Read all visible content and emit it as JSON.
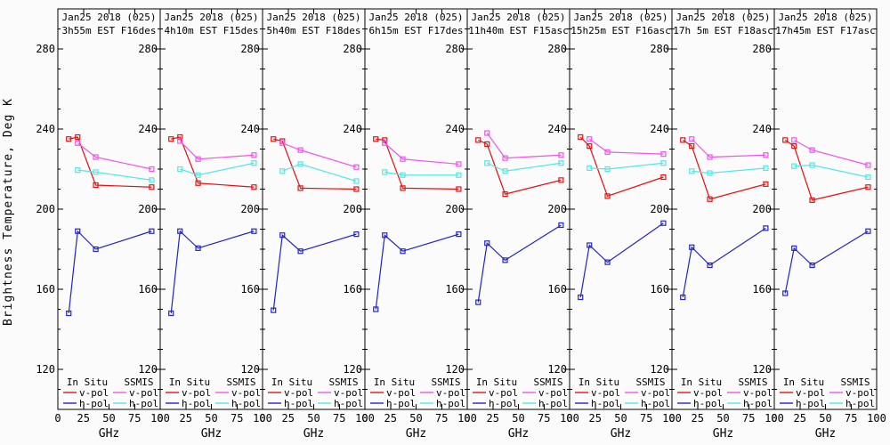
{
  "figure": {
    "background": "#fbfbfb"
  },
  "colors": {
    "insitu_v": "#e31212",
    "insitu_h": "#2424c4",
    "ssmis_v": "#ee55ee",
    "ssmis_h": "#55e6e6",
    "axis": "#000000"
  },
  "legend": {
    "col1_header": "In Situ",
    "col2_header": "SSMIS",
    "row1_label": "v-pol",
    "row2_label": "h-pol"
  },
  "chart_data": {
    "type": "line",
    "title": "",
    "xlabel": "GHz",
    "ylabel": "Brightness Temperature, Deg K",
    "xlim": [
      0,
      100
    ],
    "ylim": [
      100,
      300
    ],
    "xticks": [
      0,
      25,
      50,
      75,
      100
    ],
    "yticks": [
      120,
      160,
      200,
      240,
      280
    ],
    "grid": false,
    "marker": "open-square",
    "insitu_frequencies_ghz": [
      10.65,
      19.35,
      37,
      91.655
    ],
    "ssmis_frequencies_ghz": [
      19.35,
      37,
      91.655
    ],
    "panels": [
      {
        "title_line1": "Jan25 2018 (025)",
        "title_line2": "3h55m EST F16des",
        "series": {
          "insitu_v": [
            235,
            236,
            212,
            211
          ],
          "insitu_h": [
            148,
            189,
            180,
            189
          ],
          "ssmis_v": [
            233,
            226,
            220
          ],
          "ssmis_h": [
            219.5,
            218.5,
            214.5
          ]
        }
      },
      {
        "title_line1": "Jan25 2018 (025)",
        "title_line2": "4h10m EST F15des",
        "series": {
          "insitu_v": [
            235,
            236,
            213,
            211
          ],
          "insitu_h": [
            148,
            189,
            180.5,
            189
          ],
          "ssmis_v": [
            234,
            225,
            227
          ],
          "ssmis_h": [
            220,
            217,
            223
          ]
        }
      },
      {
        "title_line1": "Jan25 2018 (025)",
        "title_line2": "5h40m EST F18des",
        "series": {
          "insitu_v": [
            235,
            234,
            210.5,
            210
          ],
          "insitu_h": [
            149.5,
            187,
            179,
            187.5
          ],
          "ssmis_v": [
            233,
            229.5,
            221
          ],
          "ssmis_h": [
            219,
            222.5,
            214
          ]
        }
      },
      {
        "title_line1": "Jan25 2018 (025)",
        "title_line2": "6h15m EST F17des",
        "series": {
          "insitu_v": [
            235,
            234.5,
            210.5,
            210
          ],
          "insitu_h": [
            150,
            187,
            179,
            187.5
          ],
          "ssmis_v": [
            233,
            225,
            222.5
          ],
          "ssmis_h": [
            218.5,
            217,
            217
          ]
        }
      },
      {
        "title_line1": "Jan25 2018 (025)",
        "title_line2": "11h40m EST F15asc",
        "series": {
          "insitu_v": [
            234.5,
            232.5,
            207.5,
            214.5
          ],
          "insitu_h": [
            153.5,
            183,
            174.5,
            192
          ],
          "ssmis_v": [
            238,
            225.5,
            227
          ],
          "ssmis_h": [
            223,
            219,
            223
          ]
        }
      },
      {
        "title_line1": "Jan25 2018 (025)",
        "title_line2": "15h25m EST F16asc",
        "series": {
          "insitu_v": [
            236,
            231.5,
            206.5,
            216
          ],
          "insitu_h": [
            156,
            182,
            173.5,
            193
          ],
          "ssmis_v": [
            235,
            228.5,
            227.5
          ],
          "ssmis_h": [
            220.5,
            220,
            223
          ]
        }
      },
      {
        "title_line1": "Jan25 2018 (025)",
        "title_line2": "17h 5m EST F18asc",
        "series": {
          "insitu_v": [
            234.5,
            231.5,
            205,
            212.5
          ],
          "insitu_h": [
            156,
            181,
            172,
            190.5
          ],
          "ssmis_v": [
            235,
            226,
            227
          ],
          "ssmis_h": [
            219,
            218,
            220.5
          ]
        }
      },
      {
        "title_line1": "Jan25 2018 (025)",
        "title_line2": "17h45m EST F17asc",
        "series": {
          "insitu_v": [
            234.5,
            231.5,
            204.5,
            211
          ],
          "insitu_h": [
            158,
            180.5,
            172,
            189
          ],
          "ssmis_v": [
            234.5,
            229.5,
            222
          ],
          "ssmis_h": [
            221.5,
            222,
            216
          ]
        }
      }
    ]
  }
}
